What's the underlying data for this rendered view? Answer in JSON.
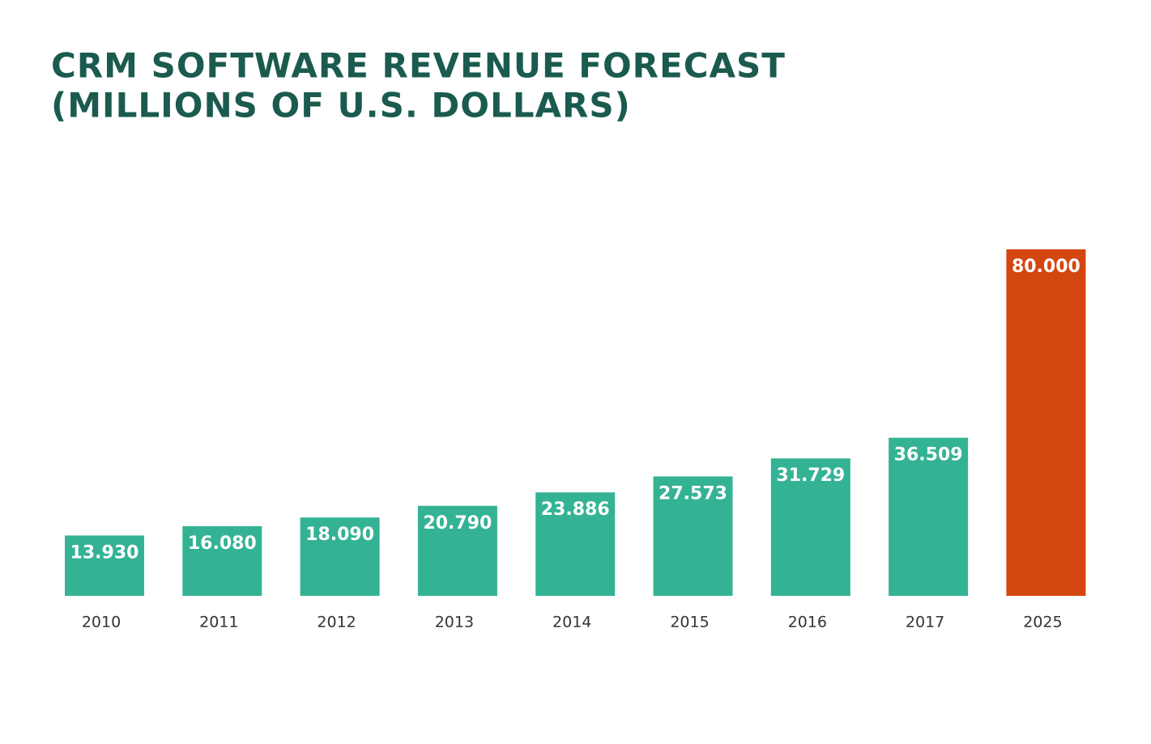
{
  "chart_data": {
    "type": "bar",
    "title": "CRM SOFTWARE REVENUE FORECAST",
    "subtitle": "(MILLIONS OF U.S. DOLLARS)",
    "categories": [
      "2010",
      "2011",
      "2012",
      "2013",
      "2014",
      "2015",
      "2016",
      "2017",
      "2025"
    ],
    "values": [
      13930,
      16080,
      18090,
      20790,
      23886,
      27573,
      31729,
      36509,
      80000
    ],
    "value_labels": [
      "13.930",
      "16.080",
      "18.090",
      "20.790",
      "23.886",
      "27.573",
      "31.729",
      "36.509",
      "80.000"
    ],
    "colors": [
      "#34b394",
      "#34b394",
      "#34b394",
      "#34b394",
      "#34b394",
      "#34b394",
      "#34b394",
      "#34b394",
      "#d4460f"
    ]
  }
}
